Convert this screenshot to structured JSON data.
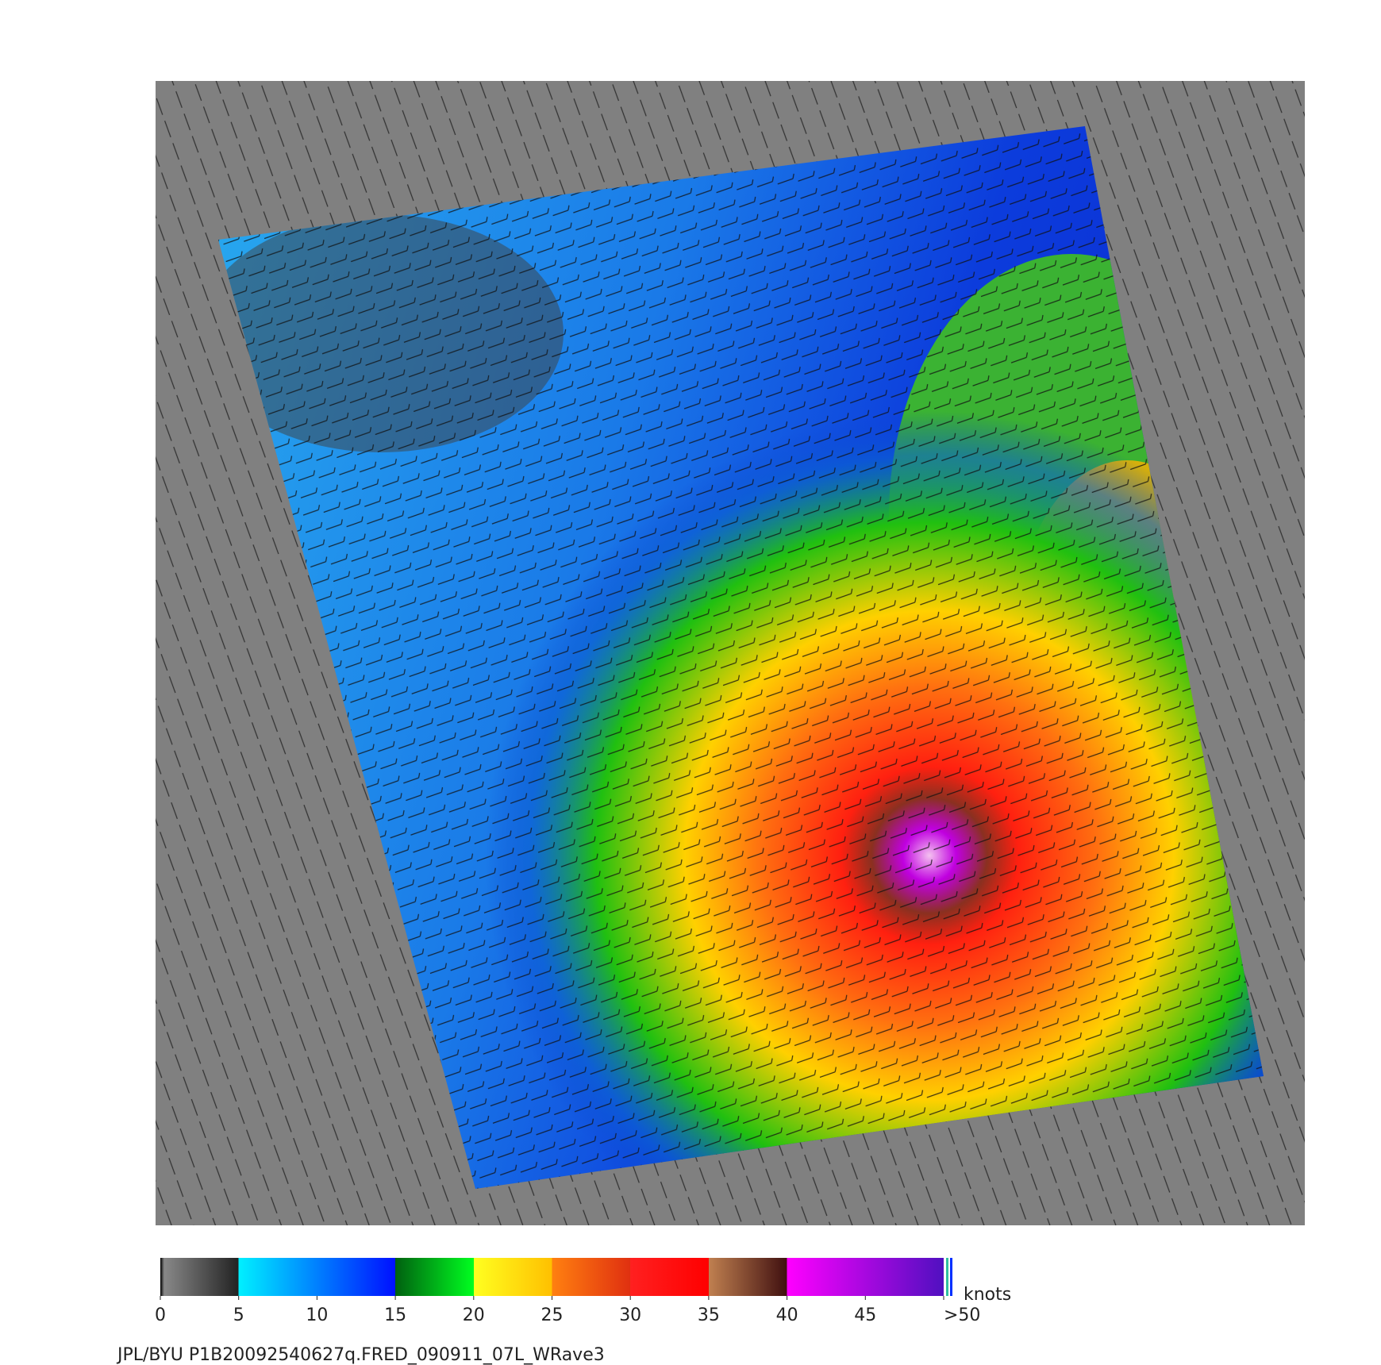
{
  "colorbar": {
    "ticks": [
      0,
      5,
      10,
      15,
      20,
      25,
      30,
      35,
      40,
      45,
      {
        "value": 50,
        "label": ">50"
      }
    ],
    "range": [
      0,
      50
    ],
    "unit": "knots"
  },
  "caption": "JPL/BYU  P1B20092540627q.FRED_090911_07L_WRave3"
}
